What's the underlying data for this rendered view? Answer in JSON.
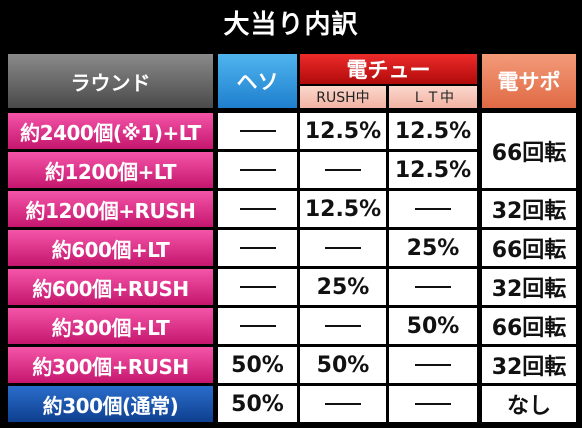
{
  "title": "大当り内訳",
  "headers": {
    "round": "ラウンド",
    "heso": "ヘソ",
    "denchu": "電チュー",
    "rush_chu": "RUSH中",
    "lt_chu": "ＬＴ中",
    "densapo": "電サポ"
  },
  "rows": [
    {
      "label": "約2400個(※1)+LT",
      "heso": "",
      "rush": "12.5%",
      "lt": "12.5%",
      "sapo": "66回転",
      "label_color": "pink"
    },
    {
      "label": "約1200個+LT",
      "heso": "",
      "rush": "",
      "lt": "12.5%",
      "sapo": "66回転",
      "label_color": "pink"
    },
    {
      "label": "約1200個+RUSH",
      "heso": "",
      "rush": "12.5%",
      "lt": "",
      "sapo": "32回転",
      "label_color": "pink"
    },
    {
      "label": "約600個+LT",
      "heso": "",
      "rush": "",
      "lt": "25%",
      "sapo": "66回転",
      "label_color": "pink"
    },
    {
      "label": "約600個+RUSH",
      "heso": "",
      "rush": "25%",
      "lt": "",
      "sapo": "32回転",
      "label_color": "pink"
    },
    {
      "label": "約300個+LT",
      "heso": "",
      "rush": "",
      "lt": "50%",
      "sapo": "66回転",
      "label_color": "pink"
    },
    {
      "label": "約300個+RUSH",
      "heso": "50%",
      "rush": "50%",
      "lt": "",
      "sapo": "32回転",
      "label_color": "pink"
    },
    {
      "label": "約300個(通常)",
      "heso": "50%",
      "rush": "",
      "lt": "",
      "sapo": "なし",
      "label_color": "blue"
    }
  ],
  "colors": {
    "background": "#000000",
    "header_round": "#6a6a6a",
    "header_heso": "#2f96e0",
    "header_denchu": "#d81616",
    "header_sub": "#f6c3b6",
    "header_densapo": "#ea7a55",
    "label_pink": "#e0318a",
    "label_blue": "#1a56ad"
  }
}
